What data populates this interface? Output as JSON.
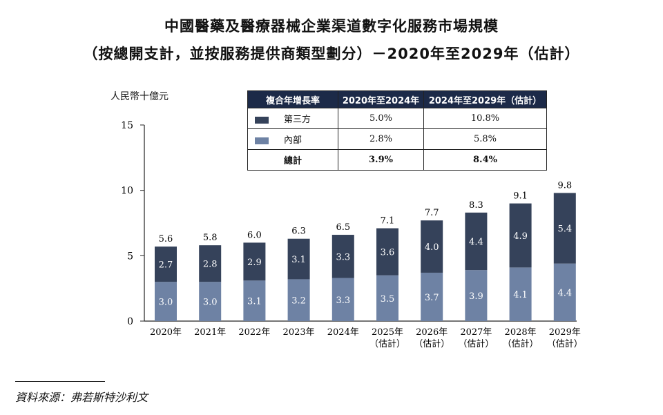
{
  "title_line1": "中國醫藥及醫療器械企業渠道數字化服務市場規模",
  "title_line2": "（按總開支計，並按服務提供商類型劃分）－2020年至2029年（估計）",
  "source": "資料來源：弗若斯特沙利文",
  "legend_table": {
    "headers": [
      "複合年增長率",
      "2020年至2024年",
      "2024年至2029年（估計）"
    ],
    "rows": [
      {
        "label": "第三方",
        "color": "#35425a",
        "v1": "5.0%",
        "v2": "10.8%"
      },
      {
        "label": "內部",
        "color": "#6e82a4",
        "v1": "2.8%",
        "v2": "5.8%"
      }
    ],
    "total": {
      "label": "總計",
      "v1": "3.9%",
      "v2": "8.4%"
    }
  },
  "chart_data": {
    "type": "bar",
    "stacked": true,
    "ylabel": "人民幣十億元",
    "ylim": [
      0,
      15
    ],
    "yticks": [
      0,
      5,
      10,
      15
    ],
    "categories": [
      "2020年",
      "2021年",
      "2022年",
      "2023年",
      "2024年",
      "2025年",
      "2026年",
      "2027年",
      "2028年",
      "2029年"
    ],
    "category_sublabels": [
      "",
      "",
      "",
      "",
      "",
      "（估計）",
      "（估計）",
      "（估計）",
      "（估計）",
      "（估計）"
    ],
    "series": [
      {
        "name": "內部",
        "color": "#6e82a4",
        "values": [
          3.0,
          3.0,
          3.1,
          3.2,
          3.3,
          3.5,
          3.7,
          3.9,
          4.1,
          4.4
        ]
      },
      {
        "name": "第三方",
        "color": "#35425a",
        "values": [
          2.7,
          2.8,
          2.9,
          3.1,
          3.3,
          3.6,
          4.0,
          4.4,
          4.9,
          5.4
        ]
      }
    ],
    "totals": [
      5.6,
      5.8,
      6.0,
      6.3,
      6.5,
      7.1,
      7.7,
      8.3,
      9.1,
      9.8
    ]
  }
}
